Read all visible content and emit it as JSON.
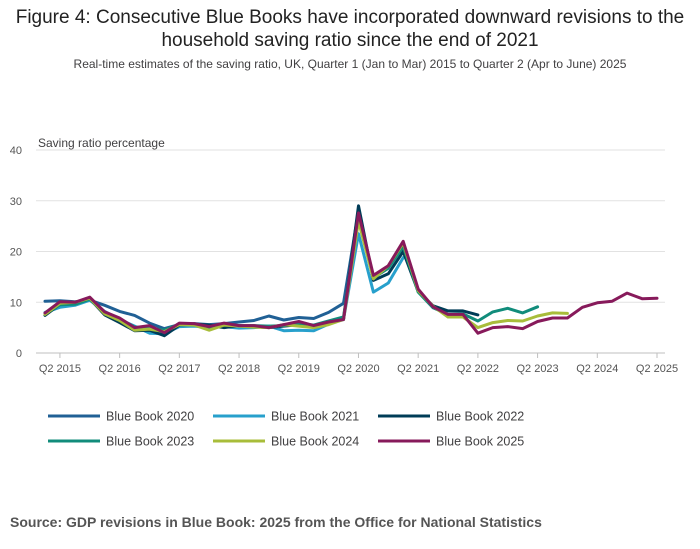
{
  "chart_data": {
    "type": "line",
    "title": "Figure 4: Consecutive Blue Books have incorporated downward revisions to the household saving ratio since the end of 2021",
    "subtitle": "Real-time estimates of the saving ratio, UK, Quarter 1 (Jan to Mar) 2015 to Quarter 2 (Apr to June) 2025",
    "ylabel": "Saving ratio percentage",
    "ylim": [
      0,
      40
    ],
    "yticks": [
      "0",
      "10",
      "20",
      "30",
      "40"
    ],
    "xrange": [
      0,
      41
    ],
    "xticks": [
      {
        "label": "Q2 2015",
        "index": 1
      },
      {
        "label": "Q2 2016",
        "index": 5
      },
      {
        "label": "Q2 2017",
        "index": 9
      },
      {
        "label": "Q2 2018",
        "index": 13
      },
      {
        "label": "Q2 2019",
        "index": 17
      },
      {
        "label": "Q2 2020",
        "index": 21
      },
      {
        "label": "Q2 2021",
        "index": 25
      },
      {
        "label": "Q2 2022",
        "index": 29
      },
      {
        "label": "Q2 2023",
        "index": 33
      },
      {
        "label": "Q2 2024",
        "index": 37
      },
      {
        "label": "Q2 2025",
        "index": 41
      }
    ],
    "x_start": "Q1 2015",
    "series": [
      {
        "name": "Blue Book 2020",
        "color": "#206095",
        "values": [
          10.2,
          10.3,
          10.1,
          10.4,
          9.4,
          8.2,
          7.4,
          5.9,
          4.8,
          5.6,
          5.8,
          5.6,
          5.8,
          6.1,
          6.4,
          7.3,
          6.5,
          7.0,
          6.8,
          8.0,
          9.8,
          28.0
        ]
      },
      {
        "name": "Blue Book 2021",
        "color": "#27a0cc",
        "values": [
          8.0,
          9.0,
          9.4,
          10.4,
          8.2,
          6.6,
          5.3,
          3.9,
          3.8,
          5.2,
          5.3,
          5.0,
          5.2,
          4.9,
          5.0,
          5.3,
          4.4,
          4.5,
          4.4,
          5.7,
          6.6,
          23.5,
          12.0,
          13.8,
          18.8
        ]
      },
      {
        "name": "Blue Book 2022",
        "color": "#003c57",
        "values": [
          7.4,
          9.6,
          9.9,
          10.7,
          7.5,
          6.0,
          4.4,
          4.5,
          3.4,
          5.5,
          5.7,
          5.5,
          5.0,
          5.4,
          5.2,
          5.0,
          5.3,
          5.6,
          5.3,
          5.9,
          6.6,
          29.0,
          14.3,
          15.6,
          20.0,
          12.1,
          9.3,
          8.3,
          8.3,
          7.5
        ]
      },
      {
        "name": "Blue Book 2023",
        "color": "#118c7b",
        "values": [
          7.7,
          9.5,
          9.6,
          10.6,
          7.9,
          6.7,
          5.1,
          5.0,
          4.5,
          5.7,
          5.7,
          5.1,
          5.6,
          5.4,
          5.4,
          5.3,
          5.4,
          5.9,
          5.5,
          6.3,
          7.1,
          27.0,
          14.8,
          16.7,
          21.0,
          12.0,
          8.9,
          7.6,
          7.7,
          6.3,
          8.1,
          8.8,
          7.9,
          9.1
        ]
      },
      {
        "name": "Blue Book 2024",
        "color": "#a8bd3a",
        "values": [
          7.6,
          9.8,
          10.0,
          10.8,
          7.7,
          6.4,
          4.5,
          4.7,
          4.2,
          5.6,
          5.5,
          4.5,
          5.5,
          5.3,
          5.1,
          5.0,
          5.6,
          5.3,
          5.0,
          5.6,
          6.6,
          26.0,
          14.6,
          17.2,
          21.7,
          12.3,
          9.2,
          7.1,
          7.1,
          5.0,
          6.0,
          6.4,
          6.3,
          7.3,
          7.9,
          7.8
        ]
      },
      {
        "name": "Blue Book 2025",
        "color": "#871a5b",
        "values": [
          7.9,
          10.1,
          10.0,
          11.0,
          8.1,
          6.9,
          5.0,
          5.4,
          4.0,
          5.9,
          5.8,
          5.2,
          5.9,
          5.4,
          5.4,
          5.0,
          5.6,
          6.2,
          5.4,
          6.1,
          6.6,
          27.6,
          15.3,
          17.2,
          22.0,
          12.6,
          9.1,
          7.6,
          7.6,
          3.9,
          5.0,
          5.2,
          4.8,
          6.2,
          6.9,
          6.9,
          9.0,
          9.9,
          10.2,
          11.8,
          10.7,
          10.8
        ]
      }
    ],
    "legend_position": "bottom"
  },
  "source": "Source: GDP revisions in Blue Book: 2025 from the Office for National Statistics"
}
